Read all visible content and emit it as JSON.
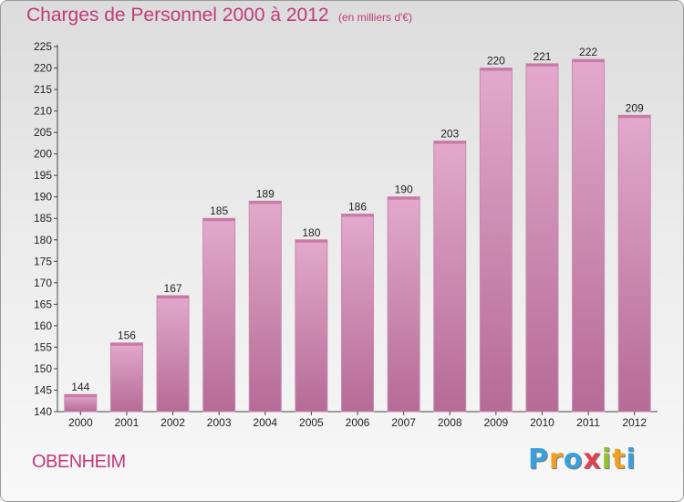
{
  "chart_data": {
    "type": "bar",
    "title": "Charges de Personnel 2000 à 2012",
    "subtitle": "(en milliers d'€)",
    "categories": [
      "2000",
      "2001",
      "2002",
      "2003",
      "2004",
      "2005",
      "2006",
      "2007",
      "2008",
      "2009",
      "2010",
      "2011",
      "2012"
    ],
    "values": [
      144,
      156,
      167,
      185,
      189,
      180,
      186,
      190,
      203,
      220,
      221,
      222,
      209
    ],
    "ylim": [
      140,
      225
    ],
    "yticks": [
      140,
      145,
      150,
      155,
      160,
      165,
      170,
      175,
      180,
      185,
      190,
      195,
      200,
      205,
      210,
      215,
      220,
      225
    ],
    "grid": false,
    "bar_color": "#d48bb5",
    "bar_color_light": "#e3a9cc",
    "bar_color_dark": "#b56b96",
    "text_color": "#c03a7a"
  },
  "footer": {
    "city": "OBENHEIM",
    "brand_letters": [
      "P",
      "r",
      "o",
      "x",
      "i",
      "t",
      "i"
    ],
    "brand_colors": [
      "#3aa0dc",
      "#f0a020",
      "#3aa0dc",
      "#e04050",
      "#90c030",
      "#f0a020",
      "#3aa0dc"
    ]
  }
}
